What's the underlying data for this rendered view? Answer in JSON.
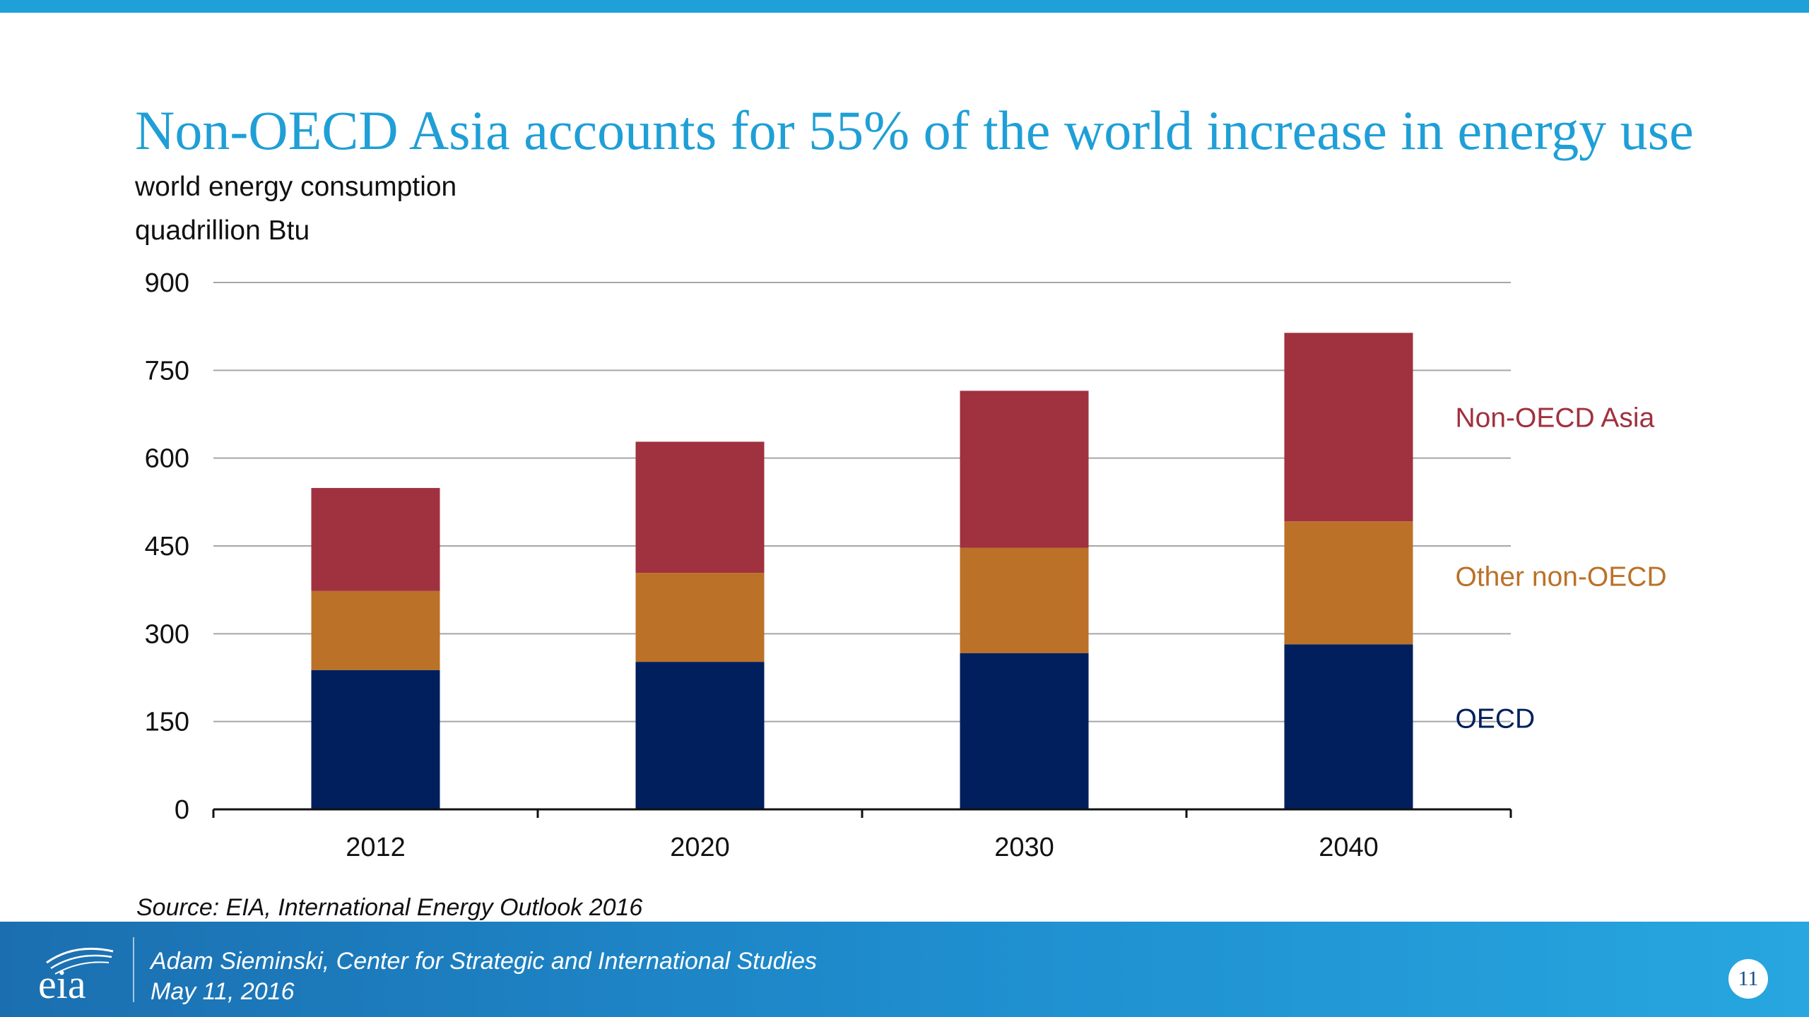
{
  "slide": {
    "title": "Non-OECD Asia accounts for 55% of the world increase in energy use",
    "subtitle_line1": "world energy consumption",
    "subtitle_line2": "quadrillion Btu",
    "source": "Source:  EIA, International Energy Outlook 2016",
    "footer_line1": "Adam Sieminski, Center for Strategic and International Studies",
    "footer_line2": "May 11, 2016",
    "page_number": "11",
    "logo_text": "eia",
    "colors": {
      "title": "#1f9fd6",
      "top_bar": "#1ea0d8",
      "footer_start": "#1b6fb0",
      "footer_end": "#27a6df"
    }
  },
  "chart_data": {
    "type": "bar",
    "stacked": true,
    "title": "Non-OECD Asia accounts for 55% of the world increase in energy use",
    "ylabel": "quadrillion Btu",
    "categories": [
      "2012",
      "2020",
      "2030",
      "2040"
    ],
    "series": [
      {
        "name": "OECD",
        "values": [
          238,
          252,
          267,
          282
        ],
        "color": "#001f5c"
      },
      {
        "name": "Other non-OECD",
        "values": [
          135,
          152,
          180,
          210
        ],
        "color": "#bb7128"
      },
      {
        "name": "Non-OECD Asia",
        "values": [
          176,
          224,
          268,
          322
        ],
        "color": "#a0313f"
      }
    ],
    "ylim": [
      0,
      900
    ],
    "yticks": [
      0,
      150,
      300,
      450,
      600,
      750,
      900
    ],
    "grid": true,
    "legend": "right, inline labels beside the 2040 bar"
  }
}
